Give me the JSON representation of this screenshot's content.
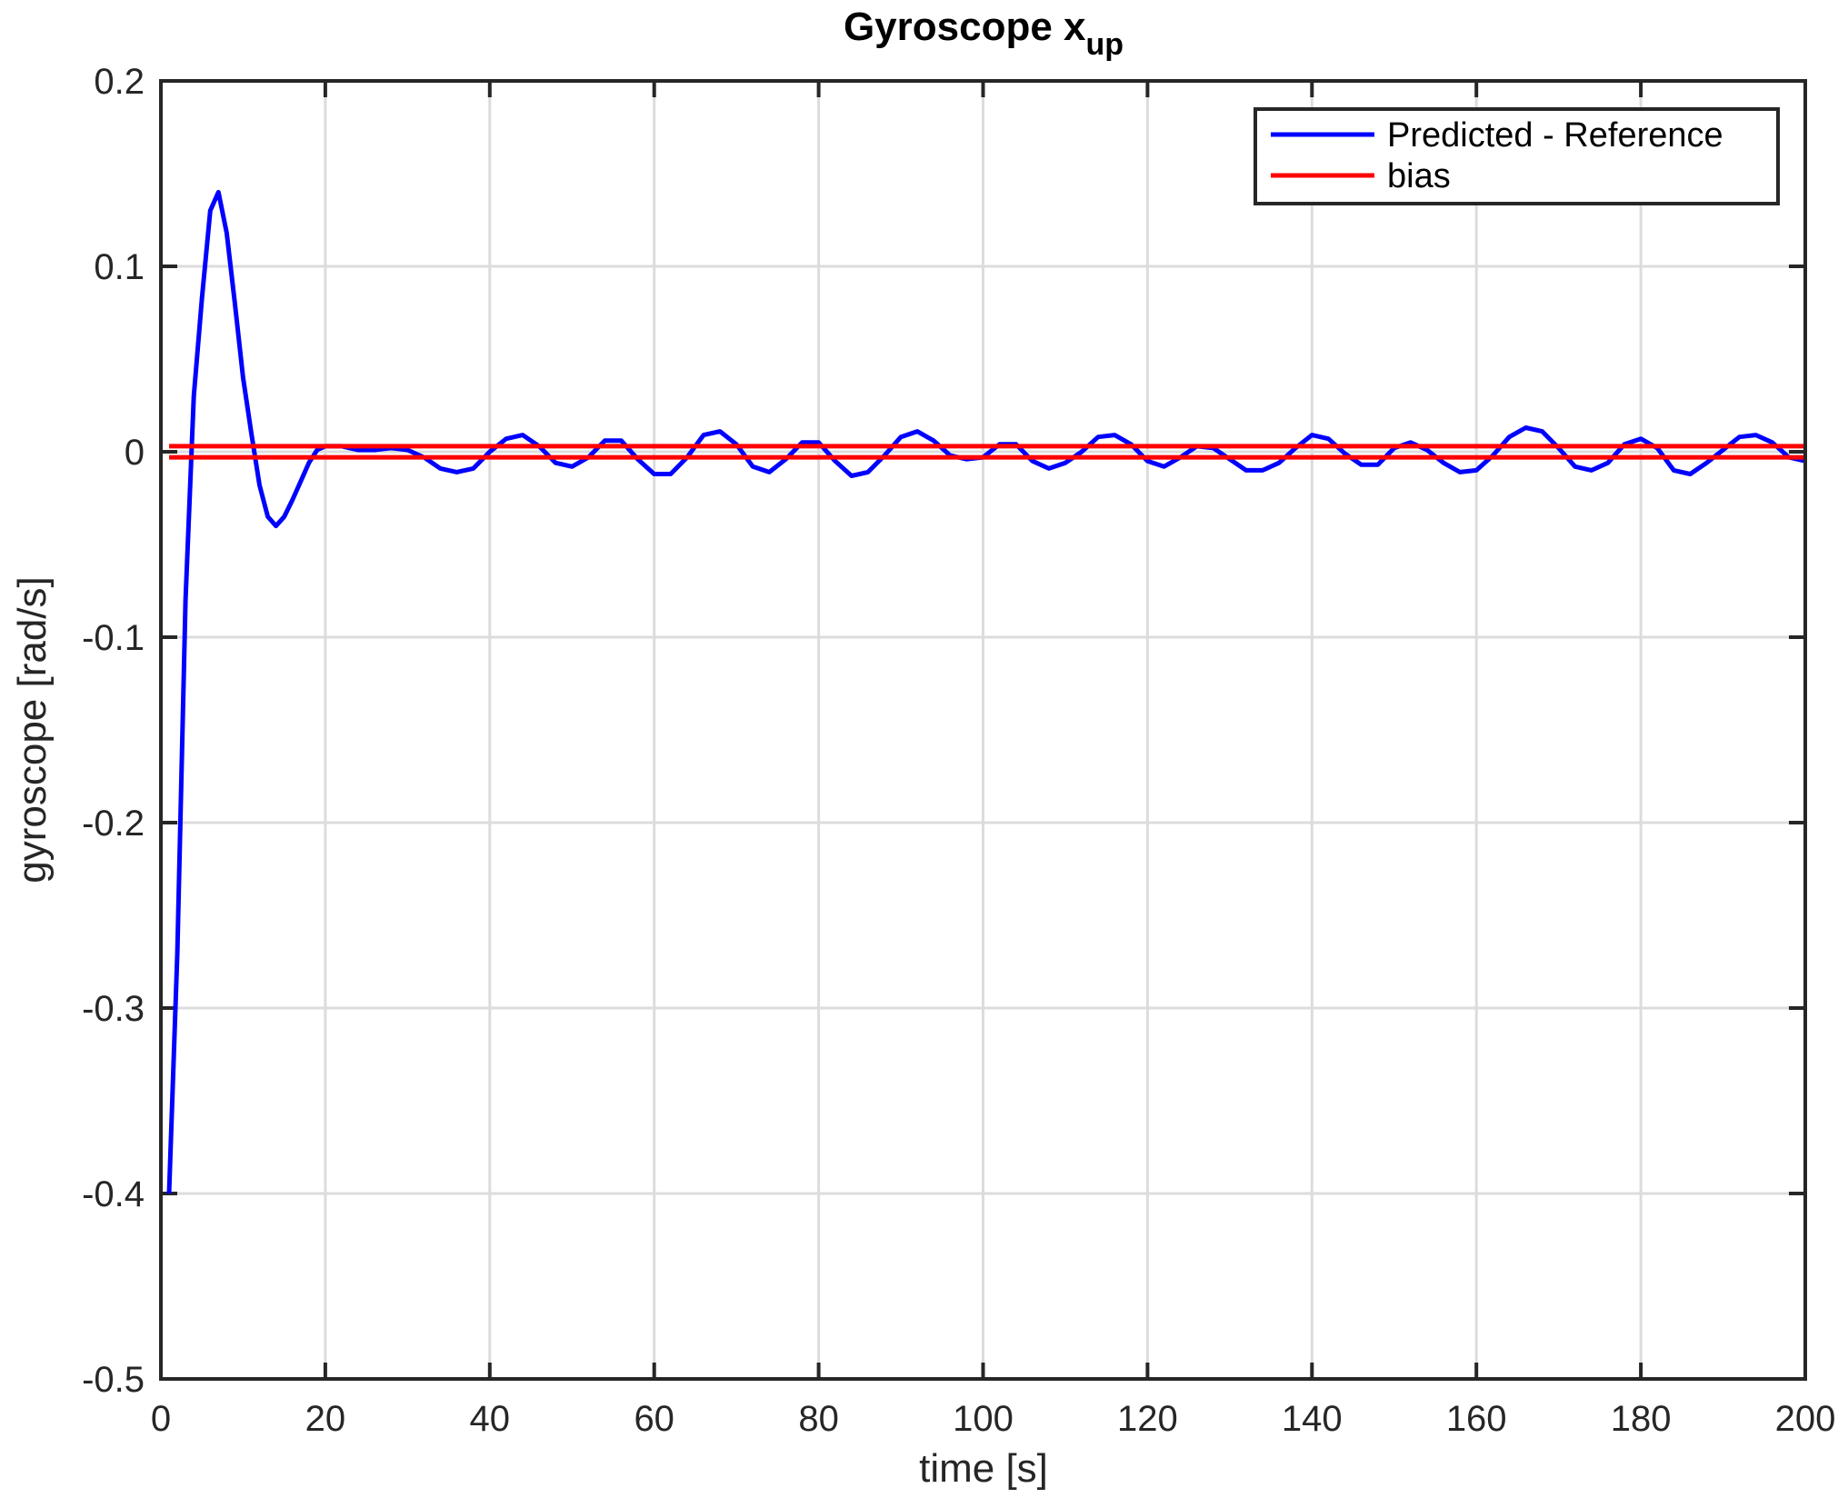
{
  "chart_data": {
    "type": "line",
    "title": "Gyroscope x",
    "title_subscript": "up",
    "xlabel": "time [s]",
    "ylabel": "gyroscope [rad/s]",
    "xlim": [
      0,
      200
    ],
    "ylim": [
      -0.5,
      0.2
    ],
    "xticks": [
      0,
      20,
      40,
      60,
      80,
      100,
      120,
      140,
      160,
      180,
      200
    ],
    "yticks": [
      -0.5,
      -0.4,
      -0.3,
      -0.2,
      -0.1,
      0,
      0.1,
      0.2
    ],
    "ytick_labels": [
      "-0.5",
      "-0.4",
      "-0.3",
      "-0.2",
      "-0.1",
      "0",
      "0.1",
      "0.2"
    ],
    "grid": true,
    "legend_position": "top-right",
    "series": [
      {
        "name": "Predicted - Reference",
        "color": "#0000ff",
        "x": [
          1,
          2,
          3,
          4,
          5,
          6,
          7,
          8,
          9,
          10,
          11,
          12,
          13,
          14,
          15,
          16,
          17,
          18,
          19,
          20,
          22,
          24,
          26,
          28,
          30,
          32,
          34,
          36,
          38,
          40,
          42,
          44,
          46,
          48,
          50,
          52,
          54,
          56,
          58,
          60,
          62,
          64,
          66,
          68,
          70,
          72,
          74,
          76,
          78,
          80,
          82,
          84,
          86,
          88,
          90,
          92,
          94,
          96,
          98,
          100,
          102,
          104,
          106,
          108,
          110,
          112,
          114,
          116,
          118,
          120,
          122,
          124,
          126,
          128,
          130,
          132,
          134,
          136,
          138,
          140,
          142,
          144,
          146,
          148,
          150,
          152,
          154,
          156,
          158,
          160,
          162,
          164,
          166,
          168,
          170,
          172,
          174,
          176,
          178,
          180,
          182,
          184,
          186,
          188,
          190,
          192,
          194,
          196,
          198,
          200
        ],
        "y": [
          -0.4,
          -0.27,
          -0.08,
          0.03,
          0.083,
          0.13,
          0.14,
          0.118,
          0.08,
          0.04,
          0.01,
          -0.018,
          -0.035,
          -0.04,
          -0.035,
          -0.026,
          -0.016,
          -0.006,
          0.001,
          0.003,
          0.003,
          0.001,
          0.001,
          0.002,
          0.001,
          -0.003,
          -0.009,
          -0.011,
          -0.009,
          0.0,
          0.007,
          0.009,
          0.003,
          -0.006,
          -0.008,
          -0.003,
          0.006,
          0.006,
          -0.004,
          -0.012,
          -0.012,
          -0.003,
          0.009,
          0.011,
          0.004,
          -0.008,
          -0.011,
          -0.004,
          0.005,
          0.005,
          -0.005,
          -0.013,
          -0.011,
          -0.002,
          0.008,
          0.011,
          0.006,
          -0.002,
          -0.004,
          -0.003,
          0.004,
          0.004,
          -0.005,
          -0.009,
          -0.006,
          0.0,
          0.008,
          0.009,
          0.004,
          -0.005,
          -0.008,
          -0.003,
          0.003,
          0.002,
          -0.004,
          -0.01,
          -0.01,
          -0.006,
          0.002,
          0.009,
          0.007,
          -0.001,
          -0.007,
          -0.007,
          0.002,
          0.005,
          0.001,
          -0.006,
          -0.011,
          -0.01,
          -0.002,
          0.008,
          0.013,
          0.011,
          0.002,
          -0.008,
          -0.01,
          -0.006,
          0.004,
          0.007,
          0.002,
          -0.01,
          -0.012,
          -0.006,
          0.001,
          0.008,
          0.009,
          0.005,
          -0.003,
          -0.005
        ]
      },
      {
        "name": "bias",
        "color": "#ff0000",
        "x": [
          1,
          200
        ],
        "y_upper": 0.003,
        "y_lower": -0.003
      }
    ]
  }
}
